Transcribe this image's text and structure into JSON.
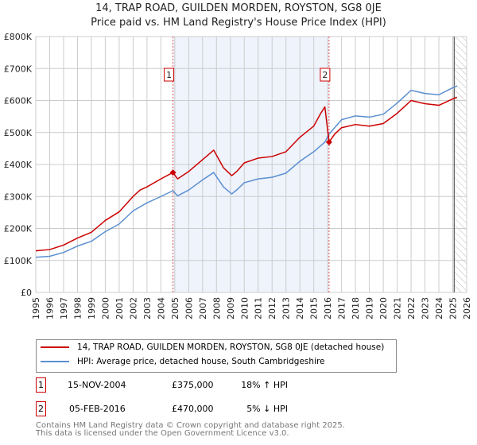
{
  "chart_data": {
    "type": "line",
    "title": "14, TRAP ROAD, GUILDEN MORDEN, ROYSTON, SG8 0JE",
    "subtitle": "Price paid vs. HM Land Registry's House Price Index (HPI)",
    "xlim": [
      1995,
      2026
    ],
    "ylim": [
      0,
      800000
    ],
    "yticks": [
      {
        "v": 0,
        "label": "£0"
      },
      {
        "v": 100000,
        "label": "£100K"
      },
      {
        "v": 200000,
        "label": "£200K"
      },
      {
        "v": 300000,
        "label": "£300K"
      },
      {
        "v": 400000,
        "label": "£400K"
      },
      {
        "v": 500000,
        "label": "£500K"
      },
      {
        "v": 600000,
        "label": "£600K"
      },
      {
        "v": 700000,
        "label": "£700K"
      },
      {
        "v": 800000,
        "label": "£800K"
      }
    ],
    "xticks": [
      "1995",
      "1996",
      "1997",
      "1998",
      "1999",
      "2000",
      "2001",
      "2002",
      "2003",
      "2004",
      "2005",
      "2006",
      "2007",
      "2008",
      "2009",
      "2010",
      "2011",
      "2012",
      "2013",
      "2014",
      "2015",
      "2016",
      "2017",
      "2018",
      "2019",
      "2020",
      "2021",
      "2022",
      "2023",
      "2024",
      "2025",
      "2026"
    ],
    "grid": true,
    "shaded_range": [
      2004.87,
      2016.1
    ],
    "forecast_hatch_from": 2025.1,
    "series": [
      {
        "name": "14, TRAP ROAD, GUILDEN MORDEN, ROYSTON, SG8 0JE (detached house)",
        "color": "#cc0000",
        "x": [
          1995,
          1996,
          1997,
          1998,
          1999,
          2000,
          2001,
          2002,
          2002.5,
          2003,
          2004,
          2004.87,
          2005.2,
          2006,
          2007,
          2007.8,
          2008.5,
          2009.1,
          2009.5,
          2010,
          2011,
          2012,
          2013,
          2014,
          2015,
          2015.5,
          2015.8,
          2016.1,
          2016.5,
          2017,
          2018,
          2019,
          2020,
          2021,
          2022,
          2023,
          2024,
          2025,
          2025.3
        ],
        "y": [
          130000,
          134000,
          148000,
          170000,
          188000,
          225000,
          252000,
          300000,
          320000,
          330000,
          355000,
          375000,
          355000,
          378000,
          415000,
          445000,
          390000,
          365000,
          380000,
          405000,
          420000,
          425000,
          440000,
          485000,
          520000,
          560000,
          580000,
          470000,
          495000,
          515000,
          525000,
          520000,
          528000,
          560000,
          600000,
          590000,
          585000,
          605000,
          610000
        ]
      },
      {
        "name": "HPI: Average price, detached house, South Cambridgeshire",
        "color": "#5b8fd0",
        "x": [
          1995,
          1996,
          1997,
          1998,
          1999,
          2000,
          2001,
          2002,
          2003,
          2004,
          2004.87,
          2005.2,
          2006,
          2007,
          2007.8,
          2008.5,
          2009.1,
          2009.5,
          2010,
          2011,
          2012,
          2013,
          2014,
          2015,
          2015.8,
          2016.1,
          2016.5,
          2017,
          2018,
          2019,
          2020,
          2021,
          2022,
          2023,
          2024,
          2025,
          2025.3
        ],
        "y": [
          110000,
          113000,
          125000,
          145000,
          160000,
          190000,
          214000,
          255000,
          280000,
          300000,
          318000,
          302000,
          320000,
          352000,
          375000,
          330000,
          308000,
          322000,
          343000,
          355000,
          360000,
          373000,
          410000,
          440000,
          470000,
          495000,
          515000,
          540000,
          552000,
          548000,
          557000,
          592000,
          632000,
          622000,
          618000,
          640000,
          645000
        ]
      }
    ],
    "markers": [
      {
        "id": "1",
        "x": 2004.87,
        "y": 375000
      },
      {
        "id": "2",
        "x": 2016.1,
        "y": 470000
      }
    ]
  },
  "legend": {
    "items": [
      "14, TRAP ROAD, GUILDEN MORDEN, ROYSTON, SG8 0JE (detached house)",
      "HPI: Average price, detached house, South Cambridgeshire"
    ]
  },
  "transactions": [
    {
      "id": "1",
      "date": "15-NOV-2004",
      "price": "£375,000",
      "hpi": "18% ↑ HPI"
    },
    {
      "id": "2",
      "date": "05-FEB-2016",
      "price": "£470,000",
      "hpi": "5% ↓ HPI"
    }
  ],
  "footer": {
    "line1": "Contains HM Land Registry data © Crown copyright and database right 2025.",
    "line2": "This data is licensed under the Open Government Licence v3.0."
  }
}
